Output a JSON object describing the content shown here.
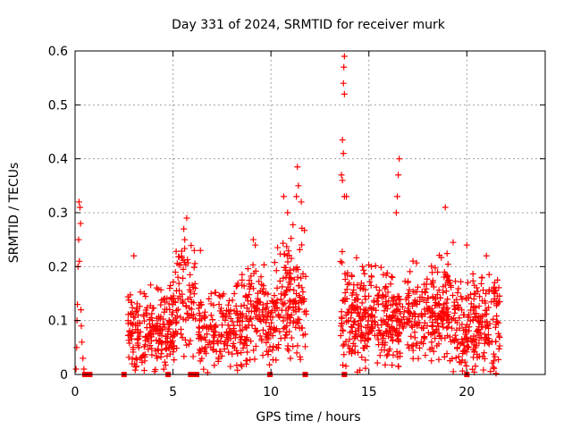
{
  "chart_data": {
    "type": "scatter",
    "title": "Day 331 of 2024, SRMTID for receiver murk",
    "xlabel": "GPS time / hours",
    "ylabel": "SRMTID / TECUs",
    "xlim": [
      0,
      24
    ],
    "ylim": [
      0,
      0.6
    ],
    "xticks": [
      0,
      5,
      10,
      15,
      20
    ],
    "yticks": [
      0,
      0.1,
      0.2,
      0.3,
      0.4,
      0.5,
      0.6
    ],
    "xtick_labels": [
      "0",
      "5",
      "10",
      "15",
      "20"
    ],
    "ytick_labels": [
      "0",
      "0.1",
      "0.2",
      "0.3",
      "0.4",
      "0.5",
      "0.6"
    ],
    "grid": true,
    "marker": "plus",
    "color": "#ff0000",
    "zero_markers": [
      {
        "x": 0.5,
        "y": 0
      },
      {
        "x": 0.65,
        "y": 0
      },
      {
        "x": 0.75,
        "y": 0
      },
      {
        "x": 2.5,
        "y": 0
      },
      {
        "x": 4.75,
        "y": 0
      },
      {
        "x": 5.9,
        "y": 0
      },
      {
        "x": 6.05,
        "y": 0
      },
      {
        "x": 6.2,
        "y": 0
      },
      {
        "x": 9.95,
        "y": 0
      },
      {
        "x": 11.75,
        "y": 0
      },
      {
        "x": 13.75,
        "y": 0
      },
      {
        "x": 20.0,
        "y": 0
      }
    ],
    "points": [
      {
        "x": 0.05,
        "y": 0.01
      },
      {
        "x": 0.08,
        "y": 0.05
      },
      {
        "x": 0.1,
        "y": 0.1
      },
      {
        "x": 0.12,
        "y": 0.13
      },
      {
        "x": 0.15,
        "y": 0.2
      },
      {
        "x": 0.18,
        "y": 0.25
      },
      {
        "x": 0.2,
        "y": 0.32
      },
      {
        "x": 0.25,
        "y": 0.31
      },
      {
        "x": 0.28,
        "y": 0.28
      },
      {
        "x": 0.3,
        "y": 0.12
      },
      {
        "x": 0.32,
        "y": 0.09
      },
      {
        "x": 0.35,
        "y": 0.06
      },
      {
        "x": 0.4,
        "y": 0.03
      },
      {
        "x": 0.45,
        "y": 0.01
      },
      {
        "x": 0.22,
        "y": 0.21
      },
      {
        "x": 13.75,
        "y": 0.59
      },
      {
        "x": 13.72,
        "y": 0.57
      },
      {
        "x": 13.7,
        "y": 0.54
      },
      {
        "x": 13.75,
        "y": 0.52
      },
      {
        "x": 13.65,
        "y": 0.435
      },
      {
        "x": 13.7,
        "y": 0.41
      },
      {
        "x": 13.6,
        "y": 0.37
      },
      {
        "x": 13.65,
        "y": 0.36
      },
      {
        "x": 13.75,
        "y": 0.33
      },
      {
        "x": 13.85,
        "y": 0.33
      },
      {
        "x": 16.55,
        "y": 0.4
      },
      {
        "x": 16.5,
        "y": 0.37
      },
      {
        "x": 16.45,
        "y": 0.33
      },
      {
        "x": 16.4,
        "y": 0.3
      },
      {
        "x": 11.35,
        "y": 0.385
      },
      {
        "x": 11.4,
        "y": 0.35
      },
      {
        "x": 11.3,
        "y": 0.33
      },
      {
        "x": 11.55,
        "y": 0.32
      },
      {
        "x": 10.65,
        "y": 0.33
      },
      {
        "x": 10.85,
        "y": 0.3
      },
      {
        "x": 18.9,
        "y": 0.31
      },
      {
        "x": 3.0,
        "y": 0.22
      },
      {
        "x": 5.55,
        "y": 0.27
      },
      {
        "x": 5.7,
        "y": 0.29
      },
      {
        "x": 5.6,
        "y": 0.25
      },
      {
        "x": 6.4,
        "y": 0.23
      },
      {
        "x": 9.1,
        "y": 0.25
      },
      {
        "x": 9.2,
        "y": 0.24
      },
      {
        "x": 19.3,
        "y": 0.245
      },
      {
        "x": 20.0,
        "y": 0.24
      },
      {
        "x": 21.0,
        "y": 0.22
      }
    ],
    "bands": [
      {
        "x0": 2.7,
        "x1": 5.1,
        "ymin": 0.0,
        "ymax": 0.18,
        "count": 230,
        "seed": 11
      },
      {
        "x0": 5.1,
        "x1": 6.2,
        "ymin": 0.03,
        "ymax": 0.27,
        "count": 80,
        "seed": 12
      },
      {
        "x0": 6.3,
        "x1": 8.5,
        "ymin": 0.0,
        "ymax": 0.18,
        "count": 170,
        "seed": 13
      },
      {
        "x0": 8.5,
        "x1": 10.3,
        "ymin": 0.01,
        "ymax": 0.22,
        "count": 160,
        "seed": 14
      },
      {
        "x0": 10.3,
        "x1": 11.8,
        "ymin": 0.02,
        "ymax": 0.29,
        "count": 140,
        "seed": 15
      },
      {
        "x0": 13.55,
        "x1": 15.2,
        "ymin": 0.0,
        "ymax": 0.23,
        "count": 170,
        "seed": 16
      },
      {
        "x0": 15.2,
        "x1": 16.8,
        "ymin": 0.01,
        "ymax": 0.21,
        "count": 150,
        "seed": 17
      },
      {
        "x0": 16.8,
        "x1": 19.2,
        "ymin": 0.02,
        "ymax": 0.23,
        "count": 220,
        "seed": 18
      },
      {
        "x0": 19.2,
        "x1": 20.3,
        "ymin": 0.0,
        "ymax": 0.19,
        "count": 90,
        "seed": 19
      },
      {
        "x0": 20.3,
        "x1": 21.7,
        "ymin": 0.0,
        "ymax": 0.2,
        "count": 140,
        "seed": 20
      }
    ]
  }
}
